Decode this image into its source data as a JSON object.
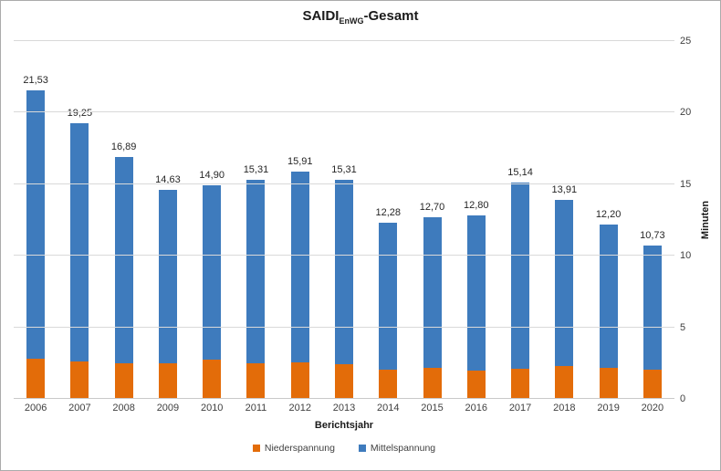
{
  "title": {
    "prefix": "SAIDI",
    "subscript": "EnWG",
    "suffix": "-Gesamt"
  },
  "chart_data": {
    "type": "bar",
    "stacked": true,
    "title": "SAIDI_EnWG-Gesamt",
    "xlabel": "Berichtsjahr",
    "ylabel": "Minuten",
    "ylim": [
      0,
      25
    ],
    "yticks": [
      0,
      5,
      10,
      15,
      20,
      25
    ],
    "grid": true,
    "legend_position": "bottom",
    "categories": [
      "2006",
      "2007",
      "2008",
      "2009",
      "2010",
      "2011",
      "2012",
      "2013",
      "2014",
      "2015",
      "2016",
      "2017",
      "2018",
      "2019",
      "2020"
    ],
    "series": [
      {
        "name": "Niederspannung",
        "color": "#E36C09",
        "values": [
          2.81,
          2.64,
          2.47,
          2.5,
          2.73,
          2.52,
          2.55,
          2.4,
          2.05,
          2.2,
          2.0,
          2.1,
          2.27,
          2.15,
          2.03
        ]
      },
      {
        "name": "Mittelspannung",
        "color": "#3E7BBD",
        "values": [
          18.72,
          16.61,
          14.42,
          12.13,
          12.17,
          12.79,
          13.36,
          12.91,
          10.23,
          10.5,
          10.8,
          13.04,
          11.64,
          10.05,
          8.7
        ]
      }
    ],
    "totals": [
      21.53,
      19.25,
      16.89,
      14.63,
      14.9,
      15.31,
      15.91,
      15.31,
      12.28,
      12.7,
      12.8,
      15.14,
      13.91,
      12.2,
      10.73
    ],
    "total_labels": [
      "21,53",
      "19,25",
      "16,89",
      "14,63",
      "14,90",
      "15,31",
      "15,91",
      "15,31",
      "12,28",
      "12,70",
      "12,80",
      "15,14",
      "13,91",
      "12,20",
      "10,73"
    ]
  },
  "legend": {
    "items": [
      {
        "label": "Niederspannung",
        "color": "#E36C09"
      },
      {
        "label": "Mittelspannung",
        "color": "#3E7BBD"
      }
    ]
  }
}
